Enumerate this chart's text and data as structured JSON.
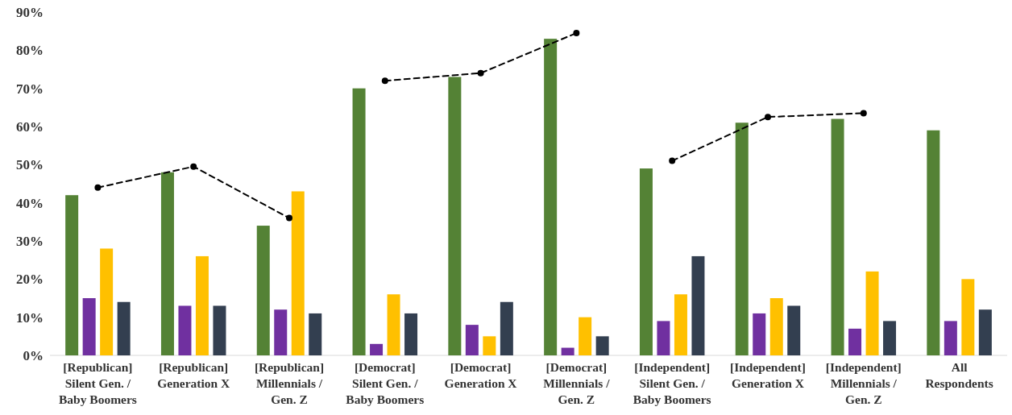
{
  "chart_data": {
    "type": "bar",
    "categories": [
      "[Republican]\nSilent Gen. /\nBaby Boomers",
      "[Republican]\nGeneration X",
      "[Republican]\nMillennials /\nGen. Z",
      "[Democrat]\nSilent Gen. /\nBaby Boomers",
      "[Democrat]\nGeneration X",
      "[Democrat]\nMillennials /\nGen. Z",
      "[Independent]\nSilent Gen. /\nBaby Boomers",
      "[Independent]\nGeneration X",
      "[Independent]\nMillennials /\nGen. Z",
      "All\nRespondents"
    ],
    "series": [
      {
        "color": "#548235",
        "values": [
          42,
          48,
          34,
          70,
          73,
          83,
          49,
          61,
          62,
          59
        ]
      },
      {
        "color": "#7030a0",
        "values": [
          15,
          13,
          12,
          3,
          8,
          2,
          9,
          11,
          7,
          9
        ]
      },
      {
        "color": "#ffc000",
        "values": [
          28,
          26,
          43,
          16,
          5,
          10,
          16,
          15,
          22,
          20
        ]
      },
      {
        "color": "#333f50",
        "values": [
          14,
          13,
          11,
          11,
          14,
          5,
          26,
          13,
          9,
          12
        ]
      },
      {
        "type": "line",
        "color": "#000000",
        "line_style": "dashed",
        "marker": "circle",
        "values": [
          44,
          49.5,
          36,
          null,
          null,
          null,
          null,
          null,
          null,
          null
        ]
      },
      {
        "type": "line",
        "color": "#000000",
        "line_style": "dashed",
        "marker": "circle",
        "values": [
          null,
          null,
          null,
          72,
          74,
          84.5,
          null,
          null,
          null,
          null
        ]
      },
      {
        "type": "line",
        "color": "#000000",
        "line_style": "dashed",
        "marker": "circle",
        "values": [
          null,
          null,
          null,
          null,
          null,
          null,
          51,
          62.5,
          63.5,
          null
        ]
      }
    ],
    "ylim": [
      0,
      90
    ],
    "yticks": [
      {
        "value": 0,
        "label": "0%"
      },
      {
        "value": 10,
        "label": "10%"
      },
      {
        "value": 20,
        "label": "20%"
      },
      {
        "value": 30,
        "label": "30%"
      },
      {
        "value": 40,
        "label": "40%"
      },
      {
        "value": 50,
        "label": "50%"
      },
      {
        "value": 60,
        "label": "60%"
      },
      {
        "value": 70,
        "label": "70%"
      },
      {
        "value": 80,
        "label": "80%"
      },
      {
        "value": 90,
        "label": "90%"
      }
    ],
    "grid": false
  }
}
